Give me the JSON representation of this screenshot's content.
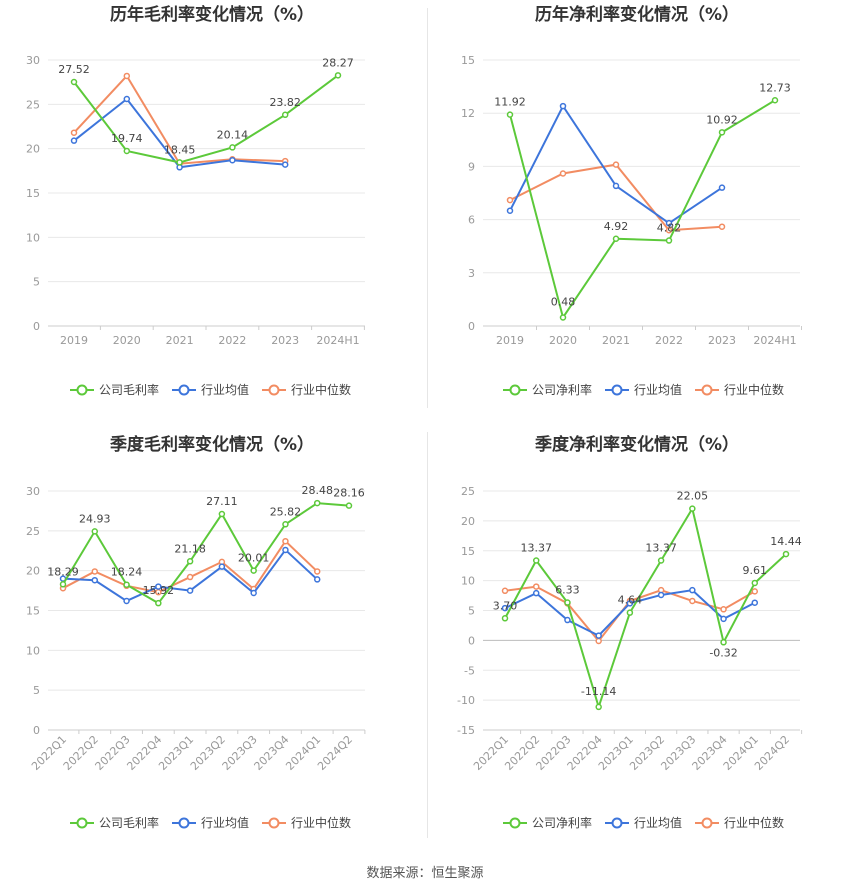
{
  "source": "数据来源：恒生聚源",
  "colors": {
    "company": "#5cc93a",
    "avg": "#3d75db",
    "median": "#f28c62",
    "axis": "#999999",
    "grid": "#e8e8e8"
  },
  "chart_data": [
    {
      "type": "line",
      "title": "历年毛利率变化情况（%）",
      "categories": [
        "2019",
        "2020",
        "2021",
        "2022",
        "2023",
        "2024H1"
      ],
      "ylim": [
        0,
        30
      ],
      "yticks": [
        0,
        5,
        10,
        15,
        20,
        25,
        30
      ],
      "series": [
        {
          "name": "公司毛利率",
          "values": [
            27.52,
            19.74,
            18.45,
            20.14,
            23.82,
            28.27
          ]
        },
        {
          "name": "行业均值",
          "values": [
            20.9,
            25.6,
            17.9,
            18.7,
            18.2,
            null
          ]
        },
        {
          "name": "行业中位数",
          "values": [
            21.8,
            28.2,
            18.3,
            18.8,
            18.6,
            null
          ]
        }
      ],
      "labels": [
        "27.52",
        "19.74",
        "18.45",
        "20.14",
        "23.82",
        "28.27"
      ],
      "legend": "bottom"
    },
    {
      "type": "line",
      "title": "历年净利率变化情况（%）",
      "categories": [
        "2019",
        "2020",
        "2021",
        "2022",
        "2023",
        "2024H1"
      ],
      "ylim": [
        0,
        15
      ],
      "yticks": [
        0,
        3,
        6,
        9,
        12,
        15
      ],
      "series": [
        {
          "name": "公司净利率",
          "values": [
            11.92,
            0.48,
            4.92,
            4.82,
            10.92,
            12.73
          ]
        },
        {
          "name": "行业均值",
          "values": [
            6.5,
            12.4,
            7.9,
            5.8,
            7.8,
            null
          ]
        },
        {
          "name": "行业中位数",
          "values": [
            7.1,
            8.6,
            9.1,
            5.4,
            5.6,
            null
          ]
        }
      ],
      "labels": [
        "11.92",
        "0.48",
        "4.92",
        "4.82",
        "10.92",
        "12.73"
      ],
      "legend": "bottom"
    },
    {
      "type": "line",
      "title": "季度毛利率变化情况（%）",
      "categories": [
        "2022Q1",
        "2022Q2",
        "2022Q3",
        "2022Q4",
        "2023Q1",
        "2023Q2",
        "2023Q3",
        "2023Q4",
        "2024Q1",
        "2024Q2"
      ],
      "ylim": [
        0,
        30
      ],
      "yticks": [
        0,
        5,
        10,
        15,
        20,
        25,
        30
      ],
      "series": [
        {
          "name": "公司毛利率",
          "values": [
            18.29,
            24.93,
            18.24,
            15.92,
            21.18,
            27.11,
            20.01,
            25.82,
            28.48,
            28.16
          ]
        },
        {
          "name": "行业均值",
          "values": [
            19.0,
            18.8,
            16.2,
            18.0,
            17.5,
            20.5,
            17.2,
            22.6,
            18.9,
            null
          ]
        },
        {
          "name": "行业中位数",
          "values": [
            17.8,
            19.9,
            18.1,
            17.3,
            19.2,
            21.1,
            17.7,
            23.7,
            19.9,
            null
          ]
        }
      ],
      "labels": [
        "18.29",
        "24.93",
        "18.24",
        "15.92",
        "21.18",
        "27.11",
        "20.01",
        "25.82",
        "28.48",
        "28.16"
      ],
      "legend": "bottom"
    },
    {
      "type": "line",
      "title": "季度净利率变化情况（%）",
      "categories": [
        "2022Q1",
        "2022Q2",
        "2022Q3",
        "2022Q4",
        "2023Q1",
        "2023Q2",
        "2023Q3",
        "2023Q4",
        "2024Q1",
        "2024Q2"
      ],
      "ylim": [
        -15,
        25
      ],
      "yticks": [
        -15,
        -10,
        -5,
        0,
        5,
        10,
        15,
        20,
        25
      ],
      "series": [
        {
          "name": "公司净利率",
          "values": [
            3.7,
            13.37,
            6.33,
            -11.14,
            4.64,
            13.37,
            22.05,
            -0.32,
            9.61,
            14.44
          ]
        },
        {
          "name": "行业均值",
          "values": [
            5.4,
            7.9,
            3.4,
            0.8,
            6.2,
            7.6,
            8.4,
            3.6,
            6.3,
            null
          ]
        },
        {
          "name": "行业中位数",
          "values": [
            8.3,
            9.0,
            6.2,
            -0.1,
            6.6,
            8.4,
            6.6,
            5.2,
            8.2,
            null
          ]
        }
      ],
      "labels": [
        "3.70",
        "13.37",
        "6.33",
        "-11.14",
        "4.64",
        "13.37",
        "22.05",
        "-0.32",
        "9.61",
        "14.44"
      ],
      "legend": "bottom"
    }
  ]
}
